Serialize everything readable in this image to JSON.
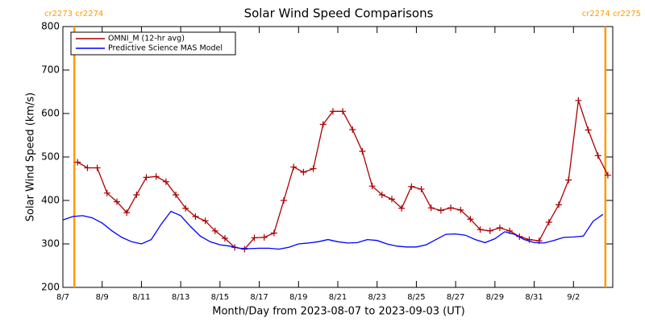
{
  "chart_data": {
    "type": "line",
    "title": "Solar Wind Speed Comparisons",
    "x_label": "Month/Day from 2023-08-07 to 2023-09-03 (UT)",
    "y_label": "Solar Wind Speed (km/s)",
    "xlim": [
      "2023-08-07 00:00",
      "2023-09-04 00:00"
    ],
    "xticks": [
      {
        "value": "2023-08-07 00:00",
        "label": "8/7"
      },
      {
        "value": "2023-08-09 00:00",
        "label": "8/9"
      },
      {
        "value": "2023-08-11 00:00",
        "label": "8/11"
      },
      {
        "value": "2023-08-13 00:00",
        "label": "8/13"
      },
      {
        "value": "2023-08-15 00:00",
        "label": "8/15"
      },
      {
        "value": "2023-08-17 00:00",
        "label": "8/17"
      },
      {
        "value": "2023-08-19 00:00",
        "label": "8/19"
      },
      {
        "value": "2023-08-21 00:00",
        "label": "8/21"
      },
      {
        "value": "2023-08-23 00:00",
        "label": "8/23"
      },
      {
        "value": "2023-08-25 00:00",
        "label": "8/25"
      },
      {
        "value": "2023-08-27 00:00",
        "label": "8/27"
      },
      {
        "value": "2023-08-29 00:00",
        "label": "8/29"
      },
      {
        "value": "2023-08-31 00:00",
        "label": "8/31"
      },
      {
        "value": "2023-09-02 00:00",
        "label": "9/2"
      }
    ],
    "ylim": [
      200,
      800
    ],
    "yticks": [
      200,
      300,
      400,
      500,
      600,
      700,
      800
    ],
    "legend": "top-left",
    "markers": [
      {
        "x": "2023-08-07 14:00",
        "label": "cr2273 cr2274",
        "color": "#ff9900"
      },
      {
        "x": "2023-09-03 15:00",
        "label": "cr2274 cr2275",
        "color": "#ff9900"
      }
    ],
    "series": [
      {
        "name": "OMNI_M (12-hr avg)",
        "color": "#aa0000",
        "marker": "plus",
        "x": [
          "2023-08-07 18:00",
          "2023-08-08 06:00",
          "2023-08-08 18:00",
          "2023-08-09 06:00",
          "2023-08-09 18:00",
          "2023-08-10 06:00",
          "2023-08-10 18:00",
          "2023-08-11 06:00",
          "2023-08-11 18:00",
          "2023-08-12 06:00",
          "2023-08-12 18:00",
          "2023-08-13 06:00",
          "2023-08-13 18:00",
          "2023-08-14 06:00",
          "2023-08-14 18:00",
          "2023-08-15 06:00",
          "2023-08-15 18:00",
          "2023-08-16 06:00",
          "2023-08-16 18:00",
          "2023-08-17 06:00",
          "2023-08-17 18:00",
          "2023-08-18 06:00",
          "2023-08-18 18:00",
          "2023-08-19 06:00",
          "2023-08-19 18:00",
          "2023-08-20 06:00",
          "2023-08-20 18:00",
          "2023-08-21 06:00",
          "2023-08-21 18:00",
          "2023-08-22 06:00",
          "2023-08-22 18:00",
          "2023-08-23 06:00",
          "2023-08-23 18:00",
          "2023-08-24 06:00",
          "2023-08-24 18:00",
          "2023-08-25 06:00",
          "2023-08-25 18:00",
          "2023-08-26 06:00",
          "2023-08-26 18:00",
          "2023-08-27 06:00",
          "2023-08-27 18:00",
          "2023-08-28 06:00",
          "2023-08-28 18:00",
          "2023-08-29 06:00",
          "2023-08-29 18:00",
          "2023-08-30 06:00",
          "2023-08-30 18:00",
          "2023-08-31 06:00",
          "2023-08-31 18:00",
          "2023-09-01 06:00",
          "2023-09-01 18:00",
          "2023-09-02 06:00",
          "2023-09-02 18:00",
          "2023-09-03 06:00",
          "2023-09-03 18:00"
        ],
        "values": [
          488,
          475,
          475,
          417,
          397,
          372,
          413,
          453,
          455,
          443,
          413,
          382,
          363,
          353,
          330,
          313,
          292,
          288,
          314,
          315,
          325,
          400,
          477,
          465,
          473,
          575,
          605,
          605,
          563,
          513,
          433,
          413,
          403,
          382,
          432,
          426,
          383,
          377,
          383,
          378,
          357,
          333,
          330,
          337,
          330,
          317,
          310,
          307,
          350,
          390,
          447,
          630,
          562,
          503,
          458
        ]
      },
      {
        "name": "Predictive Science MAS Model",
        "color": "#0000ff",
        "x": [
          "2023-08-07 00:00",
          "2023-08-07 12:00",
          "2023-08-08 00:00",
          "2023-08-08 12:00",
          "2023-08-09 00:00",
          "2023-08-09 12:00",
          "2023-08-10 00:00",
          "2023-08-10 12:00",
          "2023-08-11 00:00",
          "2023-08-11 12:00",
          "2023-08-12 00:00",
          "2023-08-12 12:00",
          "2023-08-13 00:00",
          "2023-08-13 12:00",
          "2023-08-14 00:00",
          "2023-08-14 12:00",
          "2023-08-15 00:00",
          "2023-08-15 12:00",
          "2023-08-16 00:00",
          "2023-08-16 12:00",
          "2023-08-17 00:00",
          "2023-08-17 12:00",
          "2023-08-18 00:00",
          "2023-08-18 12:00",
          "2023-08-19 00:00",
          "2023-08-19 12:00",
          "2023-08-20 00:00",
          "2023-08-20 12:00",
          "2023-08-21 00:00",
          "2023-08-21 12:00",
          "2023-08-22 00:00",
          "2023-08-22 12:00",
          "2023-08-23 00:00",
          "2023-08-23 12:00",
          "2023-08-24 00:00",
          "2023-08-24 12:00",
          "2023-08-25 00:00",
          "2023-08-25 12:00",
          "2023-08-26 00:00",
          "2023-08-26 12:00",
          "2023-08-27 00:00",
          "2023-08-27 12:00",
          "2023-08-28 00:00",
          "2023-08-28 12:00",
          "2023-08-29 00:00",
          "2023-08-29 12:00",
          "2023-08-30 00:00",
          "2023-08-30 12:00",
          "2023-08-31 00:00",
          "2023-08-31 12:00",
          "2023-09-01 00:00",
          "2023-09-01 12:00",
          "2023-09-02 00:00",
          "2023-09-02 12:00",
          "2023-09-03 00:00",
          "2023-09-03 12:00"
        ],
        "values": [
          355,
          363,
          365,
          360,
          348,
          330,
          315,
          305,
          300,
          310,
          345,
          375,
          365,
          340,
          318,
          305,
          298,
          295,
          290,
          289,
          290,
          290,
          288,
          292,
          300,
          302,
          305,
          310,
          305,
          302,
          303,
          310,
          308,
          300,
          295,
          293,
          293,
          298,
          310,
          322,
          323,
          320,
          310,
          303,
          312,
          328,
          322,
          310,
          303,
          302,
          308,
          315,
          316,
          318,
          352,
          368
        ]
      }
    ]
  }
}
